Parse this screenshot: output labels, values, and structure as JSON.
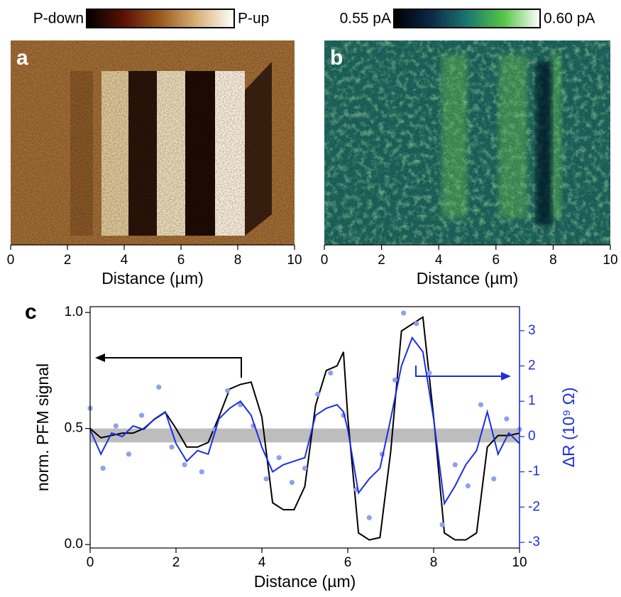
{
  "chart_data": [
    {
      "type": "image",
      "panel_label": "a",
      "xlabel": "Distance (µm)",
      "clim": [
        "P-down",
        "P-up"
      ],
      "colormap": [
        "#000000",
        "#5a1005",
        "#9a5a1e",
        "#d9b27a",
        "#ffffff"
      ],
      "xlim": [
        0,
        10
      ],
      "xticks": [
        0,
        2,
        4,
        6,
        8,
        10
      ]
    },
    {
      "type": "image",
      "panel_label": "b",
      "xlabel": "Distance (µm)",
      "clim": [
        {
          "value": 0.55,
          "label": "0.55 pA"
        },
        {
          "value": 0.6,
          "label": "0.60 pA"
        }
      ],
      "colormap": [
        "#000000",
        "#0b2848",
        "#1a7670",
        "#55c545",
        "#ffffff"
      ],
      "xlim": [
        0,
        10
      ],
      "xticks": [
        0,
        2,
        4,
        6,
        8,
        10
      ]
    },
    {
      "type": "line",
      "panel_label": "c",
      "xlabel": "Distance (µm)",
      "ylabel": "norm. PFM signal",
      "y2label": "ΔR (10⁹ Ω)",
      "xlim": [
        0,
        10
      ],
      "xticks": [
        0,
        2,
        4,
        6,
        8,
        10
      ],
      "ylim": [
        -0.015,
        1.025
      ],
      "yticks": [
        {
          "value": 0,
          "label": "0.0"
        },
        0.5,
        {
          "value": 1,
          "label": "1.0"
        }
      ],
      "y2lim": [
        -3.16,
        3.68
      ],
      "y2ticks": [
        -3,
        -2,
        -1,
        0,
        1,
        2,
        3
      ],
      "band": [
        0.44,
        0.5
      ],
      "band_color": "#bdbdbd",
      "y2color": "#1c2fe0",
      "series": [
        {
          "style": "line",
          "color": "#000000",
          "axis": "y",
          "x": [
            0,
            0.25,
            0.5,
            0.75,
            1,
            1.25,
            1.5,
            1.75,
            2,
            2.25,
            2.5,
            2.75,
            3,
            3.25,
            3.5,
            3.75,
            4,
            4.25,
            4.5,
            4.75,
            5,
            5.25,
            5.5,
            5.75,
            5.9,
            6,
            6.25,
            6.5,
            6.75,
            7,
            7.25,
            7.5,
            7.75,
            8,
            8.25,
            8.5,
            8.75,
            9,
            9.25,
            9.5,
            9.75,
            10
          ],
          "values": [
            0.5,
            0.46,
            0.47,
            0.48,
            0.48,
            0.5,
            0.54,
            0.57,
            0.5,
            0.42,
            0.42,
            0.44,
            0.55,
            0.67,
            0.69,
            0.7,
            0.55,
            0.18,
            0.15,
            0.15,
            0.25,
            0.6,
            0.75,
            0.77,
            0.83,
            0.55,
            0.05,
            0.02,
            0.03,
            0.4,
            0.92,
            0.95,
            0.98,
            0.55,
            0.05,
            0.02,
            0.02,
            0.05,
            0.42,
            0.47,
            0.47,
            0.48
          ]
        },
        {
          "style": "scatter",
          "color": "#8fa0f0",
          "axis": "y2",
          "x": [
            0,
            0.3,
            0.6,
            0.9,
            1.2,
            1.6,
            1.9,
            2.2,
            2.6,
            2.9,
            3.2,
            3.5,
            3.8,
            4.1,
            4.4,
            4.7,
            5,
            5.3,
            5.6,
            5.9,
            6.2,
            6.5,
            6.8,
            7.1,
            7.3,
            7.6,
            7.9,
            8.2,
            8.5,
            8.8,
            9.1,
            9.4,
            9.7,
            10
          ],
          "values": [
            0.8,
            -0.9,
            0.3,
            -0.5,
            0.6,
            1.4,
            -0.3,
            -0.8,
            -1,
            0.2,
            1.3,
            0.9,
            0.3,
            -1.2,
            -0.6,
            -1.3,
            -0.9,
            1.2,
            1.8,
            0.6,
            -1.5,
            -2.3,
            -0.5,
            1.6,
            3.5,
            3.2,
            1.8,
            -2.5,
            -0.8,
            -1.4,
            0.9,
            -1.2,
            0.5,
            0.2
          ]
        },
        {
          "style": "line",
          "color": "#1c2fe0",
          "axis": "y2",
          "x": [
            0,
            0.25,
            0.5,
            0.75,
            1,
            1.25,
            1.5,
            1.75,
            2,
            2.25,
            2.5,
            2.75,
            3,
            3.25,
            3.5,
            3.75,
            4,
            4.25,
            4.5,
            4.75,
            5,
            5.25,
            5.5,
            5.75,
            5.9,
            6,
            6.25,
            6.5,
            6.75,
            7,
            7.25,
            7.5,
            7.75,
            8,
            8.25,
            8.5,
            8.75,
            9,
            9.25,
            9.5,
            9.75,
            10
          ],
          "values": [
            0.2,
            -0.5,
            0.1,
            0,
            0.3,
            0.2,
            0.5,
            0.7,
            -0.2,
            -0.7,
            -0.4,
            -0.5,
            0.5,
            0.8,
            1,
            0.6,
            -0.3,
            -1,
            -0.8,
            -0.7,
            -0.6,
            0.6,
            0.8,
            0.9,
            0.7,
            0.2,
            -1.6,
            -1.2,
            -0.9,
            0.5,
            2,
            2.8,
            2.4,
            0.5,
            -1.9,
            -1.4,
            -0.8,
            -0.4,
            0.7,
            -0.5,
            0.1,
            -0.2
          ]
        }
      ]
    }
  ]
}
